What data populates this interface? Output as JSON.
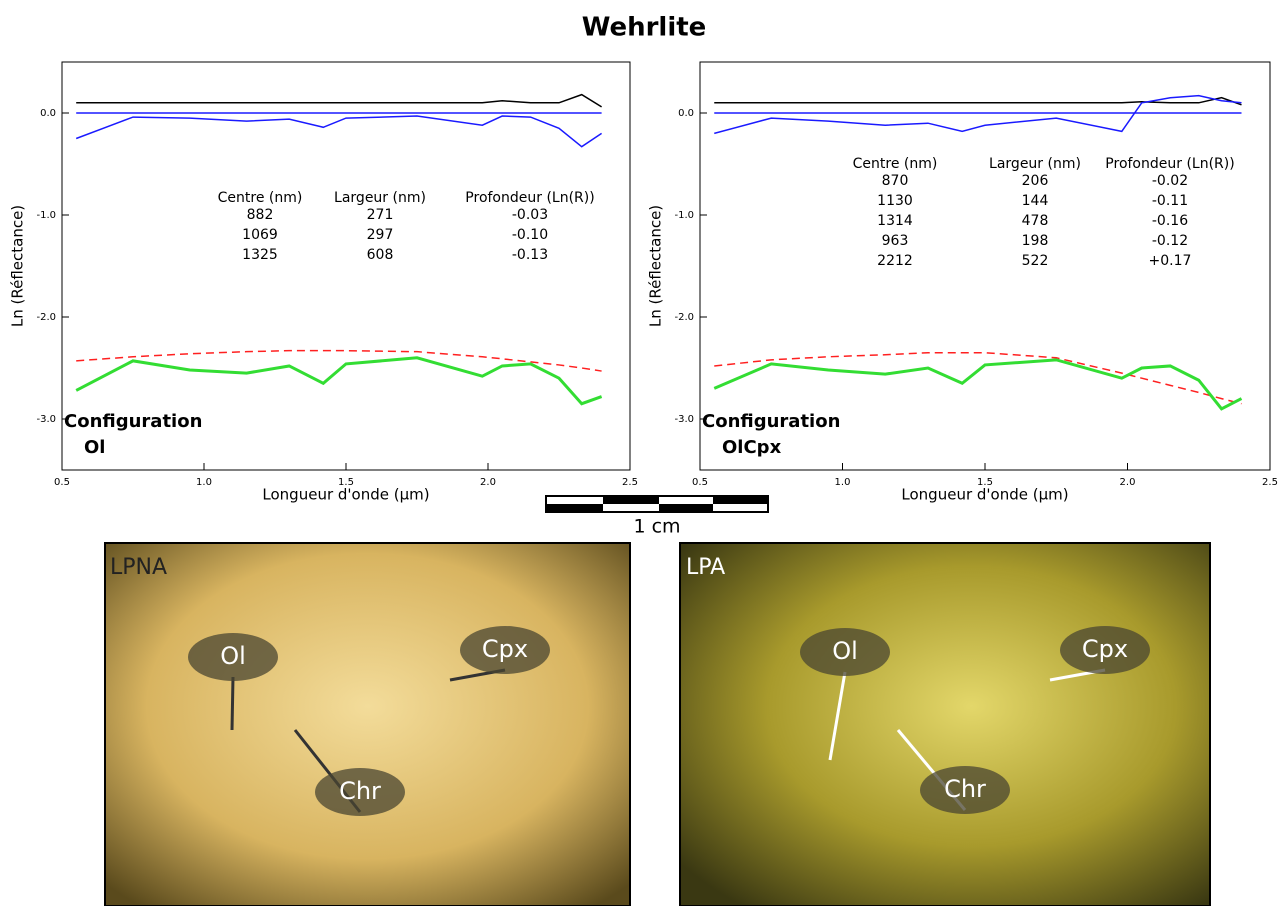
{
  "title": "Wehrlite",
  "chart_data": [
    {
      "type": "line",
      "xlabel": "Longueur d'onde (µm)",
      "ylabel": "Ln (Réflectance)",
      "xlim": [
        0.5,
        2.5
      ],
      "ylim": [
        -3.5,
        0.5
      ],
      "xticks": [
        0.5,
        {
          "value": 1,
          "label": "1.0"
        },
        1.5,
        {
          "value": 2,
          "label": "2.0"
        },
        2.5
      ],
      "yticks": [
        {
          "value": 0,
          "label": "0.0"
        },
        {
          "value": -1,
          "label": "-1.0"
        },
        {
          "value": -2,
          "label": "-2.0"
        },
        {
          "value": -3,
          "label": "-3.0"
        }
      ],
      "annotation": [
        "Configuration",
        "Ol"
      ],
      "table": {
        "columns": [
          "Centre (nm)",
          "Largeur (nm)",
          "Profondeur (Ln(R))"
        ],
        "rows": [
          [
            "882",
            "271",
            "-0.03"
          ],
          [
            "1069",
            "297",
            "-0.10"
          ],
          [
            "1325",
            "608",
            "-0.13"
          ]
        ]
      },
      "x": [
        0.55,
        0.75,
        0.95,
        1.15,
        1.3,
        1.42,
        1.5,
        1.75,
        1.98,
        2.05,
        2.15,
        2.25,
        2.33,
        2.4
      ],
      "series": [
        {
          "color": "#000000",
          "style": "solid",
          "values": [
            0.1,
            0.1,
            0.1,
            0.1,
            0.1,
            0.1,
            0.1,
            0.1,
            0.1,
            0.12,
            0.1,
            0.1,
            0.18,
            0.06
          ]
        },
        {
          "color": "#1a1aff",
          "style": "solid",
          "values": [
            0,
            0,
            0,
            0,
            0,
            0,
            0,
            0,
            0,
            0,
            0,
            0,
            0,
            0
          ]
        },
        {
          "color": "#1a1aff",
          "style": "solid",
          "values": [
            -0.25,
            -0.04,
            -0.05,
            -0.08,
            -0.06,
            -0.14,
            -0.05,
            -0.03,
            -0.12,
            -0.03,
            -0.04,
            -0.15,
            -0.33,
            -0.2
          ]
        },
        {
          "color": "#ff2020",
          "style": "dashed",
          "values": [
            -2.43,
            -2.39,
            -2.36,
            -2.34,
            -2.33,
            -2.33,
            -2.33,
            -2.34,
            -2.39,
            -2.41,
            -2.44,
            -2.47,
            -2.5,
            -2.53
          ]
        },
        {
          "color": "#33dd33",
          "style": "thick",
          "values": [
            -2.72,
            -2.43,
            -2.52,
            -2.55,
            -2.48,
            -2.65,
            -2.46,
            -2.4,
            -2.58,
            -2.48,
            -2.46,
            -2.6,
            -2.85,
            -2.78
          ]
        }
      ]
    },
    {
      "type": "line",
      "xlabel": "Longueur d'onde (µm)",
      "ylabel": "Ln (Réflectance)",
      "xlim": [
        0.5,
        2.5
      ],
      "ylim": [
        -3.5,
        0.5
      ],
      "xticks": [
        0.5,
        {
          "value": 1,
          "label": "1.0"
        },
        1.5,
        {
          "value": 2,
          "label": "2.0"
        },
        2.5
      ],
      "yticks": [
        {
          "value": 0,
          "label": "0.0"
        },
        {
          "value": -1,
          "label": "-1.0"
        },
        {
          "value": -2,
          "label": "-2.0"
        },
        {
          "value": -3,
          "label": "-3.0"
        }
      ],
      "annotation": [
        "Configuration",
        "OlCpx"
      ],
      "table": {
        "columns": [
          "Centre (nm)",
          "Largeur (nm)",
          "Profondeur (Ln(R))"
        ],
        "rows": [
          [
            "870",
            "206",
            "-0.02"
          ],
          [
            "1130",
            "144",
            "-0.11"
          ],
          [
            "1314",
            "478",
            "-0.16"
          ],
          [
            "963",
            "198",
            "-0.12"
          ],
          [
            "2212",
            "522",
            "+0.17"
          ]
        ]
      },
      "x": [
        0.55,
        0.75,
        0.95,
        1.15,
        1.3,
        1.42,
        1.5,
        1.75,
        1.98,
        2.05,
        2.15,
        2.25,
        2.33,
        2.4
      ],
      "series": [
        {
          "color": "#000000",
          "style": "solid",
          "values": [
            0.1,
            0.1,
            0.1,
            0.1,
            0.1,
            0.1,
            0.1,
            0.1,
            0.1,
            0.11,
            0.1,
            0.1,
            0.15,
            0.08
          ]
        },
        {
          "color": "#1a1aff",
          "style": "solid",
          "values": [
            0,
            0,
            0,
            0,
            0,
            0,
            0,
            0,
            0,
            0,
            0,
            0,
            0,
            0
          ]
        },
        {
          "color": "#1a1aff",
          "style": "solid",
          "values": [
            -0.2,
            -0.05,
            -0.08,
            -0.12,
            -0.1,
            -0.18,
            -0.12,
            -0.05,
            -0.18,
            0.1,
            0.15,
            0.17,
            0.12,
            0.1
          ]
        },
        {
          "color": "#ff2020",
          "style": "dashed",
          "values": [
            -2.48,
            -2.42,
            -2.39,
            -2.37,
            -2.35,
            -2.35,
            -2.35,
            -2.4,
            -2.55,
            -2.6,
            -2.67,
            -2.74,
            -2.8,
            -2.85
          ]
        },
        {
          "color": "#33dd33",
          "style": "thick",
          "values": [
            -2.7,
            -2.46,
            -2.52,
            -2.56,
            -2.5,
            -2.65,
            -2.47,
            -2.42,
            -2.6,
            -2.5,
            -2.48,
            -2.62,
            -2.9,
            -2.8
          ]
        }
      ]
    }
  ],
  "scale_bar": {
    "label": "1 cm"
  },
  "photos": [
    {
      "label": "LPNA",
      "minerals": [
        "Ol",
        "Cpx",
        "Chr"
      ]
    },
    {
      "label": "LPA",
      "minerals": [
        "Ol",
        "Cpx",
        "Chr"
      ]
    }
  ]
}
